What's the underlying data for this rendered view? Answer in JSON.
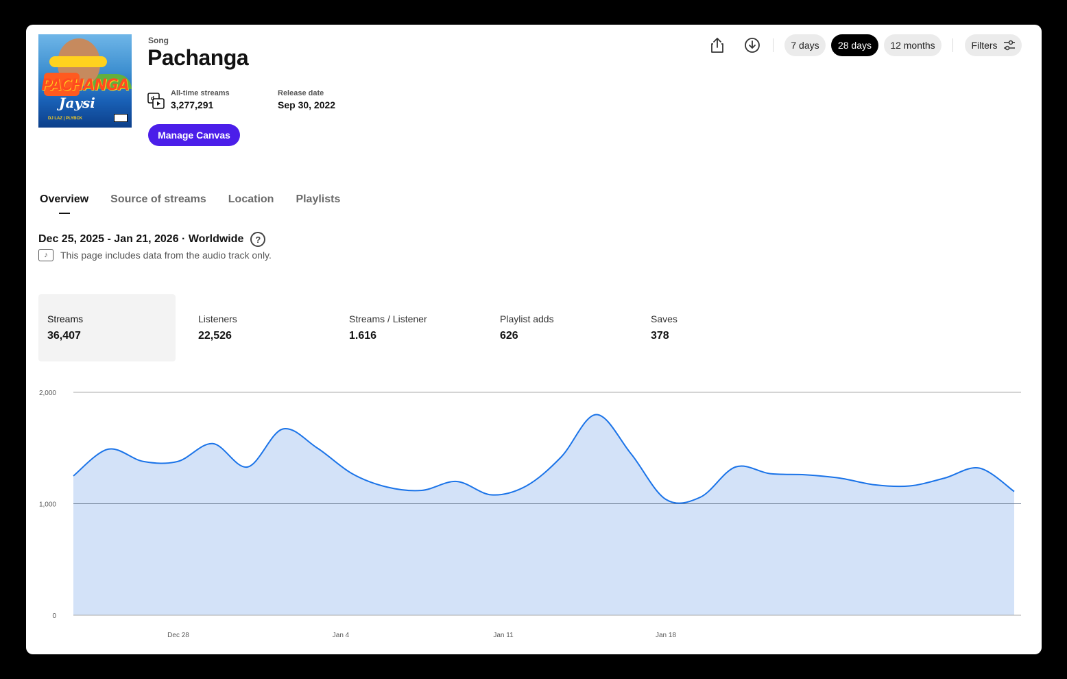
{
  "song": {
    "kind": "Song",
    "title": "Pachanga",
    "cover": {
      "title": "PACHANGA",
      "script": "Jaysi",
      "credit": "DJ LAZ | PLYBCK"
    },
    "all_time_label": "All-time streams",
    "all_time_value": "3,277,291",
    "release_label": "Release date",
    "release_value": "Sep 30, 2022",
    "manage_canvas": "Manage Canvas"
  },
  "toolbar": {
    "share_icon": "share-icon",
    "download_icon": "download-icon",
    "ranges": [
      "7 days",
      "28 days",
      "12 months"
    ],
    "active_range": "28 days",
    "filters_label": "Filters",
    "filters_icon": "sliders-icon"
  },
  "tabs": [
    "Overview",
    "Source of streams",
    "Location",
    "Playlists"
  ],
  "active_tab": "Overview",
  "range_label": "Dec 25, 2025 - Jan 21, 2026 · Worldwide",
  "help_icon": "?",
  "note": "This page includes data from the audio track only.",
  "metrics": [
    {
      "label": "Streams",
      "value": "36,407"
    },
    {
      "label": "Listeners",
      "value": "22,526"
    },
    {
      "label": "Streams / Listener",
      "value": "1.616"
    },
    {
      "label": "Playlist adds",
      "value": "626"
    },
    {
      "label": "Saves",
      "value": "378"
    }
  ],
  "colors": {
    "accent": "#4b1ee9",
    "line": "#1a73e8",
    "area": "#d3e2f8"
  },
  "chart_data": {
    "type": "area",
    "ylim": [
      0,
      2000
    ],
    "yticks": [
      "2,000",
      "1,000",
      "0"
    ],
    "xtick_labels": [
      "Dec 28",
      "Jan 4",
      "Jan 11",
      "Jan 18"
    ],
    "xtick_index": [
      3,
      10,
      17,
      24
    ],
    "x": [
      "Dec 25",
      "Dec 26",
      "Dec 27",
      "Dec 28",
      "Dec 29",
      "Dec 30",
      "Dec 31",
      "Jan 1",
      "Jan 2",
      "Jan 3",
      "Jan 4",
      "Jan 5",
      "Jan 6",
      "Jan 7",
      "Jan 8",
      "Jan 9",
      "Jan 10",
      "Jan 11",
      "Jan 12",
      "Jan 13",
      "Jan 14",
      "Jan 15",
      "Jan 16",
      "Jan 17",
      "Jan 18",
      "Jan 19",
      "Jan 20",
      "Jan 21"
    ],
    "series": [
      {
        "values": [
          1250,
          1490,
          1380,
          1380,
          1540,
          1330,
          1670,
          1500,
          1270,
          1150,
          1120,
          1200,
          1080,
          1160,
          1420,
          1800,
          1450,
          1040,
          1060,
          1330,
          1270,
          1260,
          1230,
          1170,
          1160,
          1230,
          1320,
          1110
        ]
      }
    ]
  }
}
